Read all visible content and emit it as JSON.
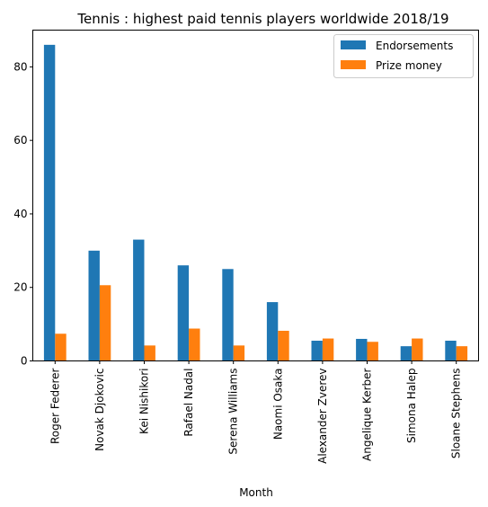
{
  "chart_data": {
    "type": "bar",
    "title": "Tennis : highest paid tennis players worldwide 2018/19",
    "xlabel": "Month",
    "ylabel": "",
    "ylim": [
      0,
      90
    ],
    "yticks": [
      0,
      20,
      40,
      60,
      80
    ],
    "grid": false,
    "legend_position": "top-right",
    "categories": [
      "Roger Federer",
      "Novak Djokovic",
      "Kei Nishikori",
      "Rafael Nadal",
      "Serena Williams",
      "Naomi Osaka",
      "Alexander Zverev",
      "Angelique Kerber",
      "Simona Halep",
      "Sloane Stephens"
    ],
    "series": [
      {
        "name": "Endorsements",
        "color": "#1f77b4",
        "values": [
          86,
          30,
          33,
          26,
          25,
          16,
          5.5,
          6,
          4,
          5.5
        ]
      },
      {
        "name": "Prize money",
        "color": "#ff7f0e",
        "values": [
          7.4,
          20.6,
          4.2,
          8.8,
          4.2,
          8.2,
          6.1,
          5.2,
          6.1,
          4
        ]
      }
    ]
  }
}
